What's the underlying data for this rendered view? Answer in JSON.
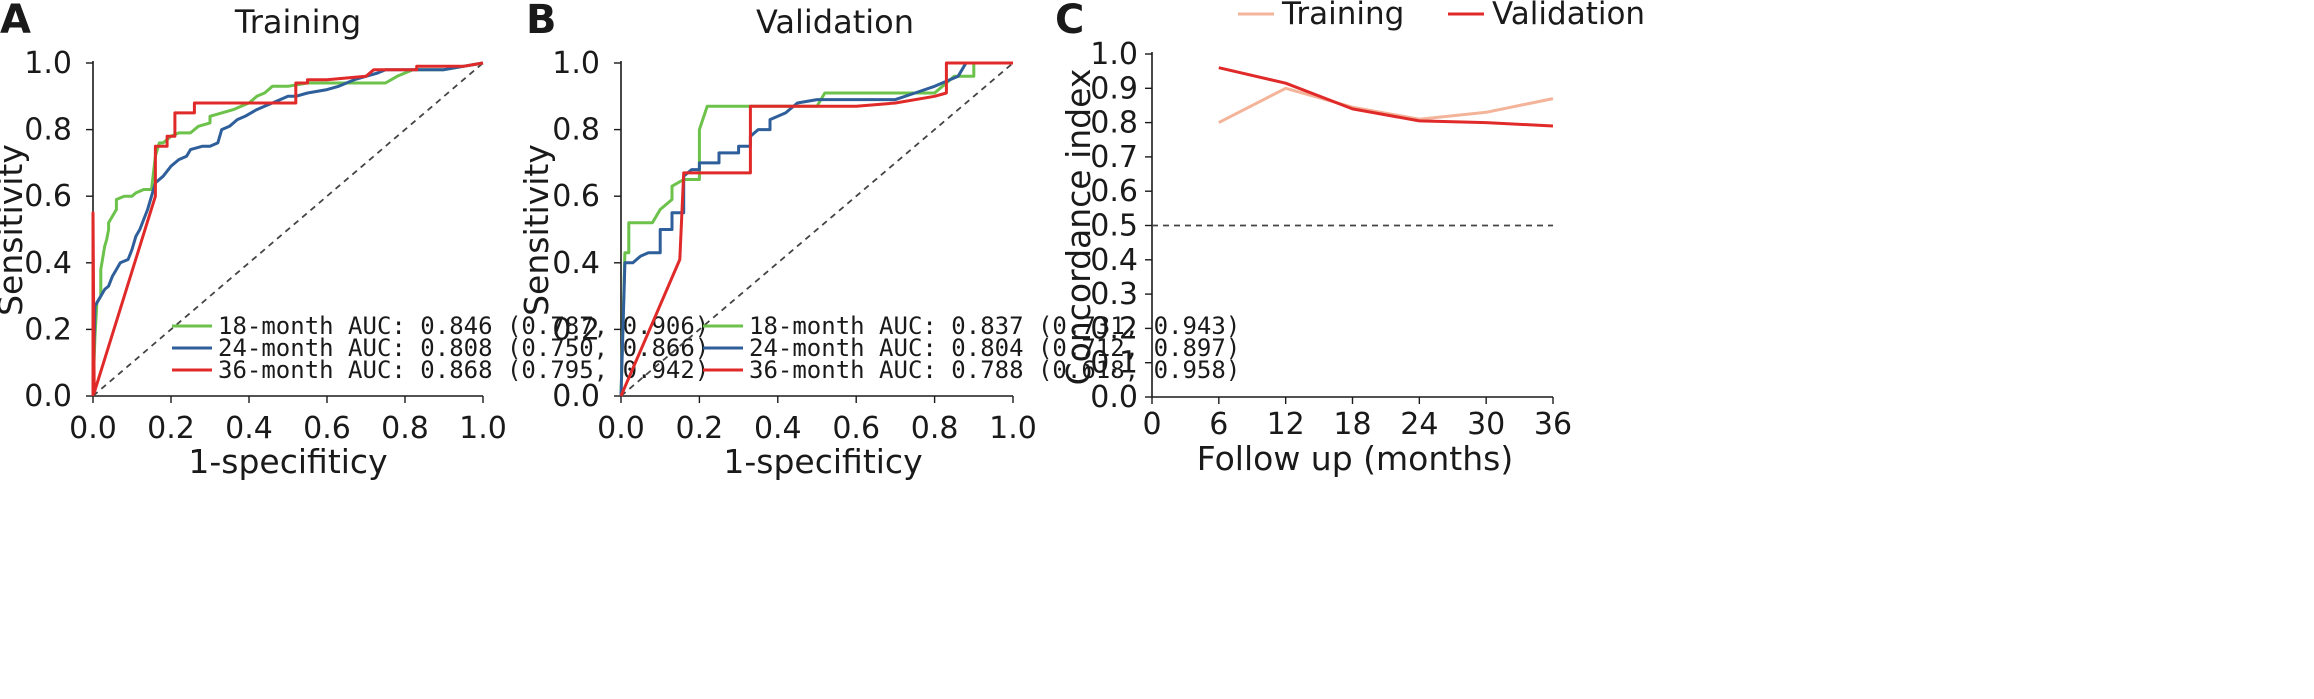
{
  "chart_data": [
    {
      "panel": "A",
      "type": "line",
      "title": "Training",
      "xlabel": "1-specifiticy",
      "ylabel": "Sensitivity",
      "xlim": [
        0,
        1
      ],
      "ylim": [
        0,
        1
      ],
      "x_ticks": [
        "0.0",
        "0.2",
        "0.4",
        "0.6",
        "0.8",
        "1.0"
      ],
      "y_ticks": [
        "0.0",
        "0.2",
        "0.4",
        "0.6",
        "0.8",
        "1.0"
      ],
      "reference_line": "diagonal",
      "legend_position": "bottom-right",
      "series": [
        {
          "name": "18-month AUC: 0.846 (0.787, 0.906)",
          "color": "#6cc24a",
          "points": [
            [
              0,
              0
            ],
            [
              0,
              0.02
            ],
            [
              0.005,
              0.18
            ],
            [
              0.01,
              0.28
            ],
            [
              0.02,
              0.3
            ],
            [
              0.02,
              0.38
            ],
            [
              0.03,
              0.45
            ],
            [
              0.035,
              0.47
            ],
            [
              0.04,
              0.5
            ],
            [
              0.04,
              0.52
            ],
            [
              0.06,
              0.56
            ],
            [
              0.06,
              0.59
            ],
            [
              0.08,
              0.6
            ],
            [
              0.1,
              0.6
            ],
            [
              0.11,
              0.61
            ],
            [
              0.13,
              0.62
            ],
            [
              0.15,
              0.62
            ],
            [
              0.16,
              0.72
            ],
            [
              0.17,
              0.76
            ],
            [
              0.18,
              0.76
            ],
            [
              0.2,
              0.78
            ],
            [
              0.22,
              0.79
            ],
            [
              0.25,
              0.79
            ],
            [
              0.27,
              0.81
            ],
            [
              0.3,
              0.82
            ],
            [
              0.3,
              0.84
            ],
            [
              0.33,
              0.85
            ],
            [
              0.36,
              0.86
            ],
            [
              0.38,
              0.87
            ],
            [
              0.4,
              0.88
            ],
            [
              0.42,
              0.9
            ],
            [
              0.44,
              0.91
            ],
            [
              0.46,
              0.93
            ],
            [
              0.5,
              0.93
            ],
            [
              0.55,
              0.94
            ],
            [
              0.6,
              0.94
            ],
            [
              0.65,
              0.94
            ],
            [
              0.7,
              0.94
            ],
            [
              0.75,
              0.94
            ],
            [
              0.78,
              0.96
            ],
            [
              0.82,
              0.98
            ],
            [
              0.85,
              0.98
            ],
            [
              0.9,
              0.98
            ],
            [
              0.95,
              0.99
            ],
            [
              1,
              1
            ]
          ]
        },
        {
          "name": "24-month AUC: 0.808 (0.750, 0.866)",
          "color": "#2f5f9a",
          "points": [
            [
              0,
              0
            ],
            [
              0,
              0.02
            ],
            [
              0.005,
              0.27
            ],
            [
              0.01,
              0.28
            ],
            [
              0.02,
              0.3
            ],
            [
              0.03,
              0.32
            ],
            [
              0.04,
              0.33
            ],
            [
              0.05,
              0.36
            ],
            [
              0.06,
              0.38
            ],
            [
              0.07,
              0.4
            ],
            [
              0.09,
              0.41
            ],
            [
              0.1,
              0.44
            ],
            [
              0.11,
              0.48
            ],
            [
              0.12,
              0.5
            ],
            [
              0.13,
              0.53
            ],
            [
              0.14,
              0.56
            ],
            [
              0.15,
              0.6
            ],
            [
              0.16,
              0.64
            ],
            [
              0.18,
              0.66
            ],
            [
              0.2,
              0.69
            ],
            [
              0.22,
              0.71
            ],
            [
              0.24,
              0.72
            ],
            [
              0.25,
              0.74
            ],
            [
              0.28,
              0.75
            ],
            [
              0.3,
              0.75
            ],
            [
              0.32,
              0.76
            ],
            [
              0.33,
              0.8
            ],
            [
              0.35,
              0.81
            ],
            [
              0.37,
              0.83
            ],
            [
              0.39,
              0.84
            ],
            [
              0.42,
              0.86
            ],
            [
              0.44,
              0.87
            ],
            [
              0.46,
              0.88
            ],
            [
              0.48,
              0.89
            ],
            [
              0.5,
              0.9
            ],
            [
              0.52,
              0.9
            ],
            [
              0.55,
              0.91
            ],
            [
              0.6,
              0.92
            ],
            [
              0.63,
              0.93
            ],
            [
              0.67,
              0.95
            ],
            [
              0.7,
              0.96
            ],
            [
              0.73,
              0.97
            ],
            [
              0.75,
              0.98
            ],
            [
              0.8,
              0.98
            ],
            [
              0.85,
              0.98
            ],
            [
              0.9,
              0.98
            ],
            [
              0.95,
              0.99
            ],
            [
              1,
              1
            ]
          ]
        },
        {
          "name": "36-month AUC: 0.868 (0.795, 0.942)",
          "color": "#e02a2a",
          "points": [
            [
              0,
              0
            ],
            [
              0,
              0.55
            ],
            [
              0.003,
              0.01
            ],
            [
              0.16,
              0.6
            ],
            [
              0.16,
              0.75
            ],
            [
              0.19,
              0.75
            ],
            [
              0.19,
              0.78
            ],
            [
              0.21,
              0.78
            ],
            [
              0.21,
              0.85
            ],
            [
              0.26,
              0.85
            ],
            [
              0.26,
              0.88
            ],
            [
              0.34,
              0.88
            ],
            [
              0.34,
              0.88
            ],
            [
              0.52,
              0.88
            ],
            [
              0.52,
              0.94
            ],
            [
              0.55,
              0.94
            ],
            [
              0.55,
              0.95
            ],
            [
              0.6,
              0.95
            ],
            [
              0.7,
              0.96
            ],
            [
              0.72,
              0.98
            ],
            [
              0.83,
              0.98
            ],
            [
              0.83,
              0.99
            ],
            [
              0.95,
              0.99
            ],
            [
              1,
              1
            ]
          ]
        }
      ]
    },
    {
      "panel": "B",
      "type": "line",
      "title": "Validation",
      "xlabel": "1-specifiticy",
      "ylabel": "Sensitivity",
      "xlim": [
        0,
        1
      ],
      "ylim": [
        0,
        1
      ],
      "x_ticks": [
        "0.0",
        "0.2",
        "0.4",
        "0.6",
        "0.8",
        "1.0"
      ],
      "y_ticks": [
        "0.0",
        "0.2",
        "0.4",
        "0.6",
        "0.8",
        "1.0"
      ],
      "reference_line": "diagonal",
      "legend_position": "bottom-right",
      "series": [
        {
          "name": "18-month AUC: 0.837 (0.731, 0.943)",
          "color": "#6cc24a",
          "points": [
            [
              0,
              0
            ],
            [
              0.01,
              0.43
            ],
            [
              0.02,
              0.43
            ],
            [
              0.02,
              0.52
            ],
            [
              0.08,
              0.52
            ],
            [
              0.1,
              0.56
            ],
            [
              0.13,
              0.59
            ],
            [
              0.13,
              0.63
            ],
            [
              0.16,
              0.65
            ],
            [
              0.2,
              0.65
            ],
            [
              0.2,
              0.8
            ],
            [
              0.22,
              0.87
            ],
            [
              0.5,
              0.87
            ],
            [
              0.52,
              0.91
            ],
            [
              0.8,
              0.91
            ],
            [
              0.82,
              0.93
            ],
            [
              0.85,
              0.96
            ],
            [
              0.9,
              0.96
            ],
            [
              0.9,
              1
            ],
            [
              1,
              1
            ]
          ]
        },
        {
          "name": "24-month AUC: 0.804 (0.712, 0.897)",
          "color": "#2f5f9a",
          "points": [
            [
              0,
              0
            ],
            [
              0.01,
              0.4
            ],
            [
              0.03,
              0.4
            ],
            [
              0.05,
              0.42
            ],
            [
              0.07,
              0.43
            ],
            [
              0.1,
              0.43
            ],
            [
              0.1,
              0.5
            ],
            [
              0.13,
              0.5
            ],
            [
              0.13,
              0.55
            ],
            [
              0.16,
              0.55
            ],
            [
              0.16,
              0.66
            ],
            [
              0.18,
              0.68
            ],
            [
              0.2,
              0.68
            ],
            [
              0.2,
              0.7
            ],
            [
              0.25,
              0.7
            ],
            [
              0.25,
              0.73
            ],
            [
              0.3,
              0.73
            ],
            [
              0.3,
              0.75
            ],
            [
              0.33,
              0.75
            ],
            [
              0.33,
              0.78
            ],
            [
              0.35,
              0.8
            ],
            [
              0.38,
              0.8
            ],
            [
              0.38,
              0.83
            ],
            [
              0.42,
              0.85
            ],
            [
              0.45,
              0.88
            ],
            [
              0.5,
              0.89
            ],
            [
              0.55,
              0.89
            ],
            [
              0.65,
              0.89
            ],
            [
              0.7,
              0.89
            ],
            [
              0.75,
              0.91
            ],
            [
              0.8,
              0.93
            ],
            [
              0.86,
              0.96
            ],
            [
              0.88,
              1
            ],
            [
              1,
              1
            ]
          ]
        },
        {
          "name": "36-month AUC: 0.788 (0.618, 0.958)",
          "color": "#e02a2a",
          "points": [
            [
              0,
              0
            ],
            [
              0.15,
              0.41
            ],
            [
              0.16,
              0.67
            ],
            [
              0.33,
              0.67
            ],
            [
              0.33,
              0.87
            ],
            [
              0.45,
              0.87
            ],
            [
              0.6,
              0.87
            ],
            [
              0.7,
              0.88
            ],
            [
              0.8,
              0.9
            ],
            [
              0.83,
              0.91
            ],
            [
              0.83,
              1
            ],
            [
              1,
              1
            ]
          ]
        }
      ]
    },
    {
      "panel": "C",
      "type": "line",
      "title": "",
      "xlabel": "Follow up (months)",
      "ylabel": "Concordance index",
      "xlim": [
        0,
        36
      ],
      "ylim": [
        0,
        1
      ],
      "x_ticks": [
        "0",
        "6",
        "12",
        "18",
        "24",
        "30",
        "36"
      ],
      "y_ticks": [
        "0.0",
        "0.1",
        "0.2",
        "0.3",
        "0.4",
        "0.5",
        "0.6",
        "0.7",
        "0.8",
        "0.9",
        "1.0"
      ],
      "reference_y": 0.5,
      "legend_position": "top-right",
      "series": [
        {
          "name": "Training",
          "color": "#f4b49a",
          "points": [
            [
              6,
              0.8
            ],
            [
              12,
              0.9
            ],
            [
              18,
              0.845
            ],
            [
              24,
              0.81
            ],
            [
              30,
              0.83
            ],
            [
              36,
              0.87
            ]
          ]
        },
        {
          "name": "Validation",
          "color": "#e02a2a",
          "points": [
            [
              6,
              0.96
            ],
            [
              12,
              0.915
            ],
            [
              18,
              0.84
            ],
            [
              24,
              0.805
            ],
            [
              30,
              0.8
            ],
            [
              36,
              0.79
            ]
          ]
        }
      ]
    }
  ]
}
